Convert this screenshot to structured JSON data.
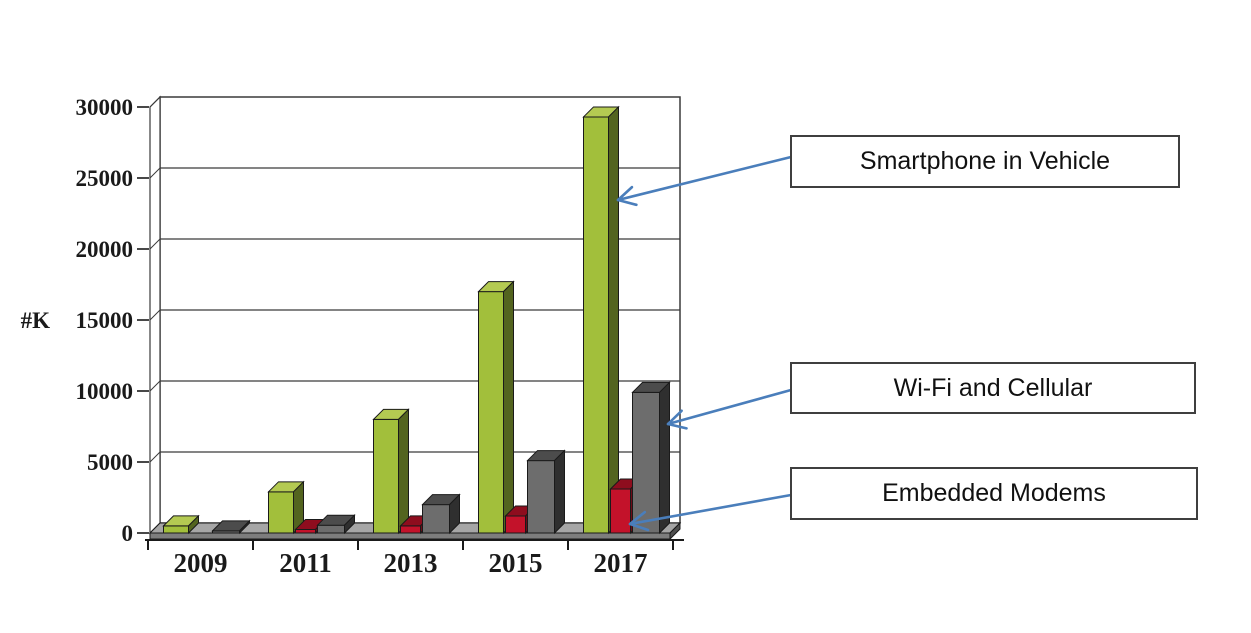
{
  "chart_data": {
    "type": "bar",
    "style": "3d-column",
    "title": "",
    "xlabel": "",
    "ylabel": "#K",
    "categories": [
      "2009",
      "2011",
      "2013",
      "2015",
      "2017"
    ],
    "series": [
      {
        "name": "Smartphone in Vehicle",
        "color": "#a2bf3b",
        "color_top": "#b4ca52",
        "color_side": "#53641f",
        "values": [
          500,
          2900,
          8000,
          17000,
          29300
        ]
      },
      {
        "name": "Embedded Modems",
        "color": "#c3122a",
        "color_top": "#8e0d1e",
        "color_side": "#6e0a17",
        "values": [
          0,
          250,
          500,
          1200,
          3100
        ]
      },
      {
        "name": "Wi-Fi and Cellular",
        "color": "#6d6d6d",
        "color_top": "#4c4c4c",
        "color_side": "#2f2f2f",
        "values": [
          150,
          550,
          2000,
          5100,
          9900
        ]
      }
    ],
    "yticks": [
      "0",
      "5000",
      "10000",
      "15000",
      "20000",
      "25000",
      "30000"
    ],
    "ylim": [
      0,
      30000
    ],
    "grid": true,
    "legend_position": "callout-boxes-right"
  },
  "callouts": [
    {
      "label": "Smartphone in Vehicle",
      "series": "Smartphone in Vehicle",
      "points_to": "green bar 2017"
    },
    {
      "label": "Wi-Fi and Cellular",
      "series": "Wi-Fi and Cellular",
      "points_to": "gray bar 2017"
    },
    {
      "label": "Embedded Modems",
      "series": "Embedded Modems",
      "points_to": "red bar 2017"
    }
  ],
  "colors": {
    "arrow": "#4a7ebb",
    "grid_line": "#3a3a3a",
    "axis_text": "#1a1a1a",
    "floor_top": "#a6a6a6",
    "floor_front": "#7d7d7d",
    "floor_cap": "#4f4f4f",
    "wall_fill": "#ffffff",
    "bar_outline": "#1a1a1a"
  }
}
